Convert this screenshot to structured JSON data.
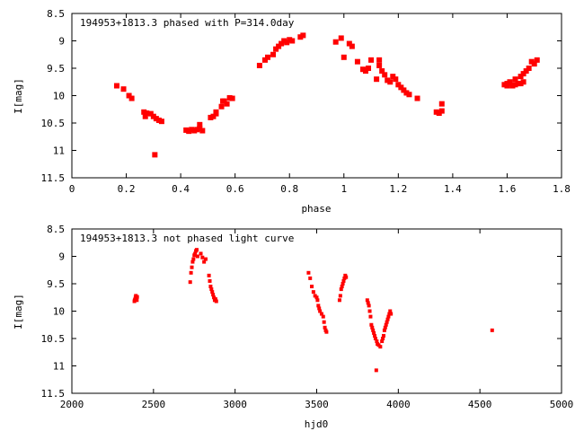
{
  "chart_data": [
    {
      "type": "scatter",
      "title": "194953+1813.3 phased with P=314.0day",
      "xlabel": "phase",
      "ylabel": "I[mag]",
      "xlim": [
        0,
        1.8
      ],
      "ylim": [
        8.5,
        11.5
      ],
      "y_inverted": true,
      "grid": false,
      "marker_color": "#ff0000",
      "x_ticks": [
        "0",
        "0.2",
        "0.4",
        "0.6",
        "0.8",
        "1",
        "1.2",
        "1.4",
        "1.6",
        "1.8"
      ],
      "y_ticks": [
        "8.5",
        "9",
        "9.5",
        "10",
        "10.5",
        "11",
        "11.5"
      ],
      "series": [
        {
          "x": [
            0.165,
            0.19,
            0.21,
            0.22,
            0.265,
            0.27,
            0.275,
            0.29,
            0.3,
            0.31,
            0.32,
            0.33,
            0.305,
            0.42,
            0.43,
            0.44,
            0.45,
            0.46,
            0.47,
            0.47,
            0.48,
            0.51,
            0.52,
            0.53,
            0.55,
            0.56,
            0.57,
            0.58,
            0.53,
            0.555,
            0.59,
            0.69,
            0.71,
            0.72,
            0.74,
            0.75,
            0.76,
            0.77,
            0.78,
            0.79,
            0.8,
            0.81,
            0.84,
            0.85,
            0.97,
            0.99,
            1.0,
            1.02,
            1.03,
            1.05,
            1.07,
            1.08,
            1.09,
            1.1,
            1.12,
            1.13,
            1.13,
            1.14,
            1.15,
            1.16,
            1.17,
            1.18,
            1.19,
            1.2,
            1.21,
            1.22,
            1.23,
            1.24,
            1.27,
            1.34,
            1.35,
            1.36,
            1.36,
            1.59,
            1.6,
            1.61,
            1.62,
            1.63,
            1.64,
            1.65,
            1.66,
            1.67,
            1.68,
            1.69,
            1.7,
            1.71,
            1.6,
            1.63,
            1.65,
            1.66
          ],
          "y": [
            9.82,
            9.88,
            10.0,
            10.05,
            10.3,
            10.38,
            10.32,
            10.33,
            10.38,
            10.42,
            10.45,
            10.47,
            11.08,
            10.63,
            10.65,
            10.62,
            10.64,
            10.62,
            10.6,
            10.53,
            10.64,
            10.4,
            10.38,
            10.3,
            10.2,
            10.1,
            10.15,
            10.04,
            10.33,
            10.1,
            10.05,
            9.45,
            9.35,
            9.3,
            9.25,
            9.15,
            9.1,
            9.05,
            9.0,
            9.03,
            8.98,
            9.0,
            8.93,
            8.9,
            9.02,
            8.95,
            9.3,
            9.05,
            9.1,
            9.38,
            9.52,
            9.55,
            9.5,
            9.35,
            9.7,
            9.45,
            9.35,
            9.55,
            9.62,
            9.72,
            9.75,
            9.65,
            9.7,
            9.8,
            9.85,
            9.9,
            9.95,
            9.98,
            10.05,
            10.3,
            10.32,
            10.28,
            10.15,
            9.8,
            9.78,
            9.75,
            9.82,
            9.7,
            9.78,
            9.65,
            9.6,
            9.55,
            9.5,
            9.38,
            9.42,
            9.35,
            9.82,
            9.8,
            9.78,
            9.75
          ]
        }
      ]
    },
    {
      "type": "scatter",
      "title": "194953+1813.3 not phased light curve",
      "xlabel": "hjd0",
      "ylabel": "I[mag]",
      "xlim": [
        2000,
        5000
      ],
      "ylim": [
        8.5,
        11.5
      ],
      "y_inverted": true,
      "grid": false,
      "marker_color": "#ff0000",
      "x_ticks": [
        "2000",
        "2500",
        "3000",
        "3500",
        "4000",
        "4500",
        "5000"
      ],
      "y_ticks": [
        "8.5",
        "9",
        "9.5",
        "10",
        "10.5",
        "11",
        "11.5"
      ],
      "series": [
        {
          "x": [
            2385,
            2388,
            2390,
            2392,
            2395,
            2398,
            2400,
            2383,
            2725,
            2730,
            2735,
            2740,
            2745,
            2750,
            2755,
            2760,
            2765,
            2770,
            2790,
            2800,
            2810,
            2820,
            2840,
            2845,
            2850,
            2855,
            2860,
            2865,
            2870,
            2875,
            2880,
            2885,
            3450,
            3460,
            3470,
            3480,
            3490,
            3500,
            3505,
            3510,
            3515,
            3520,
            3530,
            3540,
            3545,
            3550,
            3555,
            3560,
            3640,
            3645,
            3650,
            3655,
            3660,
            3665,
            3670,
            3675,
            3680,
            3810,
            3815,
            3820,
            3825,
            3830,
            3835,
            3840,
            3845,
            3850,
            3855,
            3860,
            3865,
            3868,
            3872,
            3880,
            3890,
            3900,
            3905,
            3910,
            3915,
            3920,
            3925,
            3930,
            3935,
            3940,
            3945,
            3950,
            3955,
            4575
          ],
          "y": [
            9.8,
            9.78,
            9.75,
            9.72,
            9.78,
            9.8,
            9.74,
            9.82,
            9.47,
            9.3,
            9.2,
            9.1,
            9.05,
            8.98,
            8.95,
            8.9,
            8.88,
            9.0,
            8.95,
            9.02,
            9.1,
            9.05,
            9.35,
            9.45,
            9.55,
            9.6,
            9.65,
            9.7,
            9.75,
            9.8,
            9.78,
            9.82,
            9.3,
            9.4,
            9.55,
            9.65,
            9.72,
            9.75,
            9.8,
            9.9,
            9.95,
            10.0,
            10.05,
            10.1,
            10.2,
            10.3,
            10.35,
            10.38,
            9.8,
            9.72,
            9.6,
            9.55,
            9.5,
            9.45,
            9.4,
            9.35,
            9.38,
            9.8,
            9.85,
            9.9,
            10.0,
            10.1,
            10.25,
            10.3,
            10.35,
            10.4,
            10.45,
            10.5,
            11.08,
            10.55,
            10.6,
            10.62,
            10.65,
            10.55,
            10.5,
            10.45,
            10.35,
            10.3,
            10.25,
            10.2,
            10.15,
            10.1,
            10.05,
            10.0,
            10.05,
            10.35
          ]
        }
      ]
    }
  ]
}
